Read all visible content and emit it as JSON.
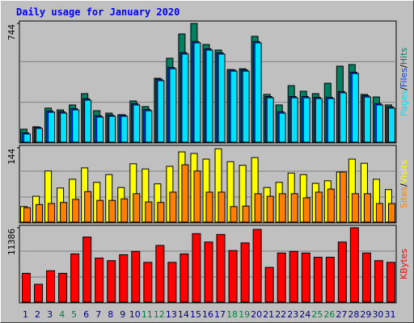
{
  "title": "Daily usage for January 2020",
  "separator": "/",
  "chart_data": [
    {
      "type": "bar",
      "ylim": [
        0,
        744
      ],
      "yticks": [
        744
      ],
      "series": [
        {
          "name": "Hits",
          "color": "#008060",
          "values": [
            81,
            96,
            213,
            202,
            233,
            304,
            197,
            182,
            172,
            258,
            223,
            400,
            526,
            678,
            744,
            612,
            577,
            455,
            460,
            663,
            299,
            233,
            354,
            319,
            304,
            369,
            476,
            486,
            299,
            283,
            233
          ]
        },
        {
          "name": "Files",
          "color": "#0040FF",
          "values": [
            58,
            93,
            195,
            190,
            210,
            272,
            165,
            170,
            170,
            241,
            205,
            394,
            468,
            561,
            631,
            585,
            560,
            453,
            453,
            631,
            286,
            190,
            286,
            286,
            281,
            281,
            317,
            438,
            291,
            241,
            221
          ]
        },
        {
          "name": "Pages",
          "color": "#00E0FF",
          "values": [
            51,
            86,
            187,
            182,
            202,
            263,
            157,
            162,
            162,
            233,
            197,
            385,
            460,
            552,
            622,
            577,
            552,
            445,
            445,
            622,
            278,
            182,
            278,
            278,
            273,
            273,
            309,
            430,
            283,
            233,
            213
          ]
        }
      ]
    },
    {
      "type": "bar",
      "ylim": [
        0,
        144
      ],
      "yticks": [
        144
      ],
      "series": [
        {
          "name": "Visits",
          "color": "#FFFF00",
          "values": [
            30,
            50,
            99,
            66,
            83,
            105,
            77,
            92,
            67,
            113,
            103,
            74,
            108,
            136,
            133,
            122,
            142,
            117,
            110,
            125,
            67,
            77,
            95,
            92,
            75,
            80,
            97,
            122,
            114,
            83,
            63
          ]
        },
        {
          "name": "Sites",
          "color": "#FF8000",
          "values": [
            28,
            34,
            36,
            38,
            44,
            59,
            42,
            42,
            45,
            55,
            39,
            38,
            58,
            111,
            99,
            58,
            58,
            30,
            31,
            55,
            50,
            55,
            55,
            47,
            58,
            64,
            97,
            55,
            55,
            36,
            36
          ]
        }
      ]
    },
    {
      "type": "bar",
      "ylim": [
        0,
        11386
      ],
      "yticks": [
        11386
      ],
      "categories": [
        "1",
        "2",
        "3",
        "4",
        "5",
        "6",
        "7",
        "8",
        "9",
        "10",
        "11",
        "12",
        "13",
        "14",
        "15",
        "16",
        "17",
        "18",
        "19",
        "20",
        "21",
        "22",
        "23",
        "24",
        "25",
        "26",
        "27",
        "28",
        "29",
        "30",
        "31"
      ],
      "category_colors": [
        "#000080",
        "#000080",
        "#000080",
        "#008040",
        "#008040",
        "#000080",
        "#000080",
        "#000080",
        "#000080",
        "#000080",
        "#008040",
        "#008040",
        "#000080",
        "#000080",
        "#000080",
        "#000080",
        "#000080",
        "#008040",
        "#008040",
        "#000080",
        "#000080",
        "#000080",
        "#000080",
        "#000080",
        "#008040",
        "#008040",
        "#000080",
        "#000080",
        "#000080",
        "#000080",
        "#000080"
      ],
      "series": [
        {
          "name": "KBytes",
          "color": "#FF0000",
          "values": [
            4400,
            2720,
            4790,
            4400,
            7380,
            9960,
            6730,
            6340,
            7250,
            7760,
            6080,
            8670,
            6080,
            7380,
            10480,
            9190,
            10350,
            7890,
            9060,
            11130,
            5310,
            7510,
            7760,
            7510,
            6860,
            6860,
            9190,
            11386,
            7510,
            6340,
            6080
          ]
        }
      ]
    }
  ]
}
